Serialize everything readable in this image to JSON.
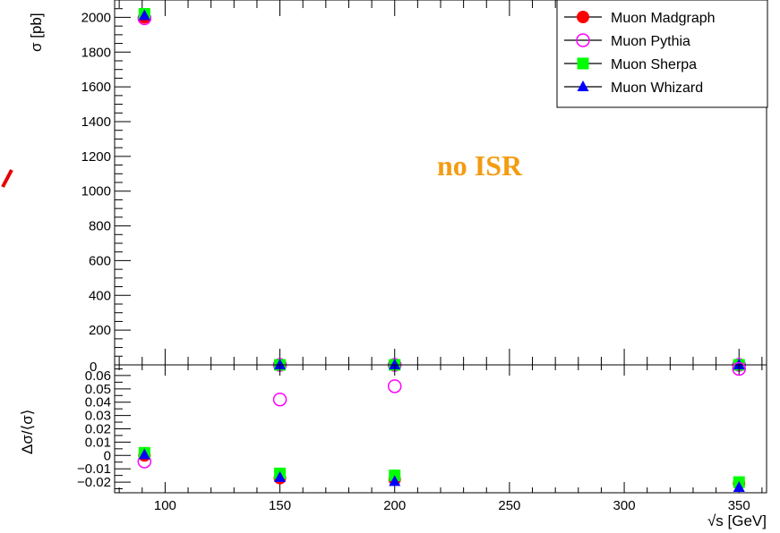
{
  "chart_data": [
    {
      "type": "scatter",
      "panel": "main",
      "title": "",
      "xlabel": "",
      "ylabel": "σ [pb]",
      "xlim": [
        78,
        362
      ],
      "ylim": [
        0,
        2100
      ],
      "yticks": [
        200,
        400,
        600,
        800,
        1000,
        1200,
        1400,
        1600,
        1800,
        2000
      ],
      "ytick_labels": [
        "200",
        "400",
        "600",
        "800",
        "1000",
        "1200",
        "1400",
        "1600",
        "1800",
        "2000"
      ],
      "legend_position": "top-right",
      "annotation": {
        "text": "no ISR",
        "color": "#f39c12"
      },
      "series": [
        {
          "name": "Muon Madgraph",
          "marker": "filled-circle",
          "color": "#ff0000",
          "x": [
            91,
            150,
            200,
            350
          ],
          "y": [
            2000,
            0,
            0,
            0
          ]
        },
        {
          "name": "Muon Pythia",
          "marker": "open-circle",
          "color": "#ff00ff",
          "x": [
            91,
            150,
            200,
            350
          ],
          "y": [
            1995,
            0,
            0,
            0
          ]
        },
        {
          "name": "Muon Sherpa",
          "marker": "square",
          "color": "#00ff00",
          "x": [
            91,
            150,
            200,
            350
          ],
          "y": [
            2020,
            0,
            0,
            0
          ]
        },
        {
          "name": "Muon Whizard",
          "marker": "triangle",
          "color": "#0000ff",
          "x": [
            91,
            150,
            200,
            350
          ],
          "y": [
            2010,
            0,
            0,
            0
          ]
        }
      ]
    },
    {
      "type": "scatter",
      "panel": "ratio",
      "title": "",
      "xlabel": "√s [GeV]",
      "ylabel": "Δσ/⟨σ⟩",
      "xlim": [
        78,
        362
      ],
      "ylim": [
        -0.028,
        0.068
      ],
      "xticks": [
        100,
        150,
        200,
        250,
        300,
        350
      ],
      "xtick_labels": [
        "100",
        "150",
        "200",
        "250",
        "300",
        "350"
      ],
      "yticks": [
        -0.02,
        -0.01,
        0,
        0.01,
        0.02,
        0.03,
        0.04,
        0.05,
        0.06
      ],
      "ytick_labels": [
        "−0.02",
        "−0.01",
        "0",
        "0.01",
        "0.02",
        "0.03",
        "0.04",
        "0.05",
        "0.06"
      ],
      "series": [
        {
          "name": "Muon Madgraph",
          "marker": "filled-circle",
          "color": "#ff0000",
          "x": [
            91,
            150,
            200,
            350
          ],
          "y": [
            0.0,
            -0.017,
            -0.018,
            -0.021
          ]
        },
        {
          "name": "Muon Pythia",
          "marker": "open-circle",
          "color": "#ff00ff",
          "x": [
            91,
            150,
            200,
            350
          ],
          "y": [
            -0.0045,
            0.042,
            0.052,
            0.065
          ]
        },
        {
          "name": "Muon Sherpa",
          "marker": "square",
          "color": "#00ff00",
          "x": [
            91,
            150,
            200,
            350
          ],
          "y": [
            0.002,
            -0.0135,
            -0.015,
            -0.02
          ]
        },
        {
          "name": "Muon Whizard",
          "marker": "triangle",
          "color": "#0000ff",
          "x": [
            91,
            150,
            200,
            350
          ],
          "y": [
            0.0005,
            -0.0165,
            -0.0195,
            -0.024
          ]
        }
      ]
    }
  ]
}
